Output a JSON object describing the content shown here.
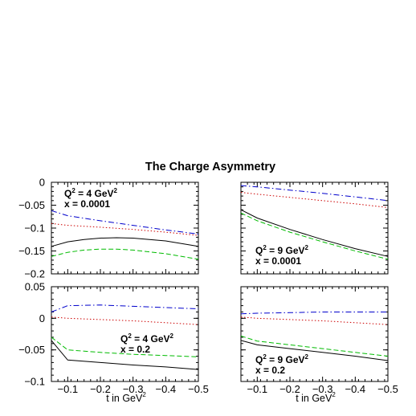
{
  "chart_data": {
    "type": "line",
    "title": "The Charge Asymmetry",
    "xlabel": "t in GeV",
    "xlabel_sup": "2",
    "grid": false,
    "panels": [
      {
        "annotation": {
          "q2": "Q",
          "q2_sup": "2",
          "q2_rest": " = 4 GeV",
          "unit_sup": "2",
          "x": "x = 0.0001"
        },
        "xlim": [
          -0.05,
          -0.5
        ],
        "ylim": [
          -0.2,
          0
        ],
        "xticks": [
          -0.1,
          -0.2,
          -0.3,
          -0.4,
          -0.5
        ],
        "xtick_labels": [
          "",
          "",
          "",
          "",
          ""
        ],
        "yticks": [
          0,
          -0.05,
          -0.1,
          -0.15,
          -0.2
        ],
        "ytick_labels": [
          "0",
          "-0.05",
          "-0.1",
          "-0.15",
          "-0.2"
        ],
        "series": [
          {
            "color": "#0000cc",
            "dash": "dashdot",
            "points": [
              [
                -0.05,
                -0.062
              ],
              [
                -0.1,
                -0.073
              ],
              [
                -0.2,
                -0.084
              ],
              [
                -0.3,
                -0.094
              ],
              [
                -0.4,
                -0.104
              ],
              [
                -0.5,
                -0.113
              ]
            ]
          },
          {
            "color": "#cc0000",
            "dash": "dotted",
            "points": [
              [
                -0.05,
                -0.09
              ],
              [
                -0.1,
                -0.094
              ],
              [
                -0.2,
                -0.098
              ],
              [
                -0.3,
                -0.103
              ],
              [
                -0.4,
                -0.109
              ],
              [
                -0.5,
                -0.116
              ]
            ]
          },
          {
            "color": "#000000",
            "dash": "solid",
            "points": [
              [
                -0.05,
                -0.14
              ],
              [
                -0.1,
                -0.13
              ],
              [
                -0.15,
                -0.125
              ],
              [
                -0.2,
                -0.122
              ],
              [
                -0.25,
                -0.121
              ],
              [
                -0.3,
                -0.122
              ],
              [
                -0.4,
                -0.128
              ],
              [
                -0.5,
                -0.14
              ]
            ]
          },
          {
            "color": "#00bb00",
            "dash": "dashed",
            "points": [
              [
                -0.05,
                -0.162
              ],
              [
                -0.1,
                -0.153
              ],
              [
                -0.15,
                -0.148
              ],
              [
                -0.2,
                -0.146
              ],
              [
                -0.25,
                -0.146
              ],
              [
                -0.3,
                -0.148
              ],
              [
                -0.4,
                -0.156
              ],
              [
                -0.5,
                -0.168
              ]
            ]
          }
        ]
      },
      {
        "annotation": {
          "q2": "Q",
          "q2_sup": "2",
          "q2_rest": " = 9 GeV",
          "unit_sup": "2",
          "x": "x = 0.0001"
        },
        "xlim": [
          -0.05,
          -0.5
        ],
        "ylim": [
          -0.2,
          0
        ],
        "xticks": [
          -0.1,
          -0.2,
          -0.3,
          -0.4,
          -0.5
        ],
        "xtick_labels": [
          "",
          "",
          "",
          "",
          ""
        ],
        "yticks": [
          0,
          -0.05,
          -0.1,
          -0.15,
          -0.2
        ],
        "ytick_labels": [
          "",
          "",
          "",
          "",
          ""
        ],
        "series": [
          {
            "color": "#0000cc",
            "dash": "dashdot",
            "points": [
              [
                -0.05,
                -0.007
              ],
              [
                -0.1,
                -0.01
              ],
              [
                -0.2,
                -0.017
              ],
              [
                -0.3,
                -0.024
              ],
              [
                -0.4,
                -0.032
              ],
              [
                -0.5,
                -0.04
              ]
            ]
          },
          {
            "color": "#cc0000",
            "dash": "dotted",
            "points": [
              [
                -0.05,
                -0.022
              ],
              [
                -0.1,
                -0.026
              ],
              [
                -0.2,
                -0.033
              ],
              [
                -0.3,
                -0.04
              ],
              [
                -0.4,
                -0.047
              ],
              [
                -0.5,
                -0.055
              ]
            ]
          },
          {
            "color": "#000000",
            "dash": "solid",
            "points": [
              [
                -0.05,
                -0.06
              ],
              [
                -0.1,
                -0.078
              ],
              [
                -0.2,
                -0.103
              ],
              [
                -0.3,
                -0.125
              ],
              [
                -0.4,
                -0.145
              ],
              [
                -0.5,
                -0.162
              ]
            ]
          },
          {
            "color": "#00bb00",
            "dash": "dashed",
            "points": [
              [
                -0.05,
                -0.067
              ],
              [
                -0.1,
                -0.084
              ],
              [
                -0.2,
                -0.109
              ],
              [
                -0.3,
                -0.13
              ],
              [
                -0.4,
                -0.15
              ],
              [
                -0.5,
                -0.168
              ]
            ]
          }
        ]
      },
      {
        "annotation": {
          "q2": "Q",
          "q2_sup": "2",
          "q2_rest": " = 4 GeV",
          "unit_sup": "2",
          "x": "x = 0.2"
        },
        "xlim": [
          -0.05,
          -0.5
        ],
        "ylim": [
          -0.1,
          0.05
        ],
        "xticks": [
          -0.1,
          -0.2,
          -0.3,
          -0.4,
          -0.5
        ],
        "xtick_labels": [
          "-0.1",
          "-0.2",
          "-0.3",
          "-0.4",
          "-0.5"
        ],
        "yticks": [
          0.05,
          0,
          -0.05,
          -0.1
        ],
        "ytick_labels": [
          "0.05",
          "0",
          "-0.05",
          "-0.1"
        ],
        "series": [
          {
            "color": "#0000cc",
            "dash": "dashdot",
            "points": [
              [
                -0.05,
                0.01
              ],
              [
                -0.1,
                0.02
              ],
              [
                -0.2,
                0.021
              ],
              [
                -0.3,
                0.019
              ],
              [
                -0.4,
                0.017
              ],
              [
                -0.5,
                0.015
              ]
            ]
          },
          {
            "color": "#cc0000",
            "dash": "dotted",
            "points": [
              [
                -0.05,
                0.002
              ],
              [
                -0.1,
                0.0
              ],
              [
                -0.2,
                -0.002
              ],
              [
                -0.3,
                -0.004
              ],
              [
                -0.4,
                -0.007
              ],
              [
                -0.5,
                -0.01
              ]
            ]
          },
          {
            "color": "#00bb00",
            "dash": "dashed",
            "points": [
              [
                -0.05,
                -0.03
              ],
              [
                -0.1,
                -0.05
              ],
              [
                -0.2,
                -0.054
              ],
              [
                -0.3,
                -0.057
              ],
              [
                -0.4,
                -0.059
              ],
              [
                -0.5,
                -0.061
              ]
            ]
          },
          {
            "color": "#000000",
            "dash": "solid",
            "points": [
              [
                -0.05,
                -0.035
              ],
              [
                -0.1,
                -0.066
              ],
              [
                -0.2,
                -0.07
              ],
              [
                -0.3,
                -0.074
              ],
              [
                -0.4,
                -0.077
              ],
              [
                -0.5,
                -0.081
              ]
            ]
          }
        ]
      },
      {
        "annotation": {
          "q2": "Q",
          "q2_sup": "2",
          "q2_rest": " = 9 GeV",
          "unit_sup": "2",
          "x": "x = 0.2"
        },
        "xlim": [
          -0.05,
          -0.5
        ],
        "ylim": [
          -0.1,
          0.05
        ],
        "xticks": [
          -0.1,
          -0.2,
          -0.3,
          -0.4,
          -0.5
        ],
        "xtick_labels": [
          "-0.1",
          "-0.2",
          "-0.3",
          "-0.4",
          "-0.5"
        ],
        "yticks": [
          0.05,
          0,
          -0.05,
          -0.1
        ],
        "ytick_labels": [
          "",
          "",
          "",
          ""
        ],
        "series": [
          {
            "color": "#0000cc",
            "dash": "dashdot",
            "points": [
              [
                -0.05,
                0.007
              ],
              [
                -0.1,
                0.008
              ],
              [
                -0.2,
                0.009
              ],
              [
                -0.3,
                0.01
              ],
              [
                -0.4,
                0.01
              ],
              [
                -0.5,
                0.01
              ]
            ]
          },
          {
            "color": "#cc0000",
            "dash": "dotted",
            "points": [
              [
                -0.05,
                0.002
              ],
              [
                -0.1,
                0.0
              ],
              [
                -0.2,
                -0.002
              ],
              [
                -0.3,
                -0.004
              ],
              [
                -0.4,
                -0.007
              ],
              [
                -0.5,
                -0.01
              ]
            ]
          },
          {
            "color": "#00bb00",
            "dash": "dashed",
            "points": [
              [
                -0.05,
                -0.028
              ],
              [
                -0.1,
                -0.036
              ],
              [
                -0.2,
                -0.042
              ],
              [
                -0.3,
                -0.048
              ],
              [
                -0.4,
                -0.054
              ],
              [
                -0.5,
                -0.06
              ]
            ]
          },
          {
            "color": "#000000",
            "dash": "solid",
            "points": [
              [
                -0.05,
                -0.035
              ],
              [
                -0.1,
                -0.042
              ],
              [
                -0.2,
                -0.048
              ],
              [
                -0.3,
                -0.054
              ],
              [
                -0.4,
                -0.06
              ],
              [
                -0.5,
                -0.067
              ]
            ]
          }
        ]
      }
    ]
  }
}
